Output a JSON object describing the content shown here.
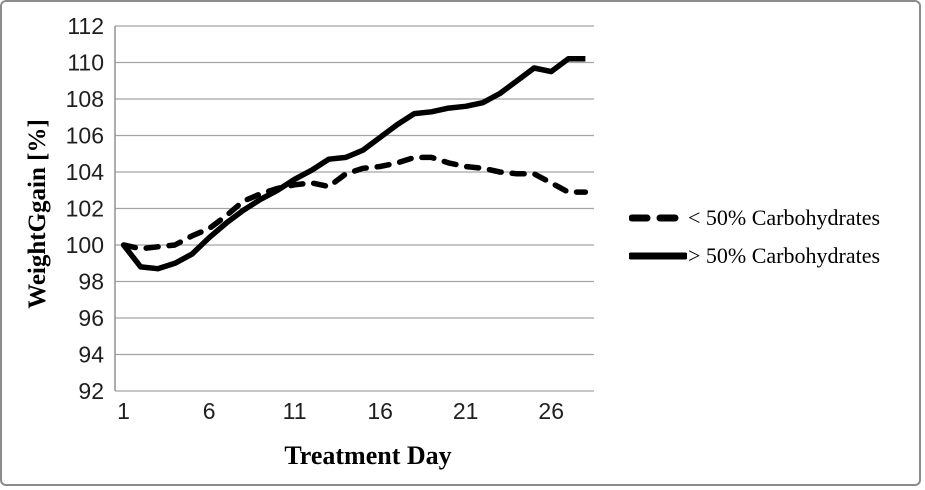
{
  "figure": {
    "background": "#ffffff",
    "border_color": "#8c8c8c"
  },
  "chart_data": {
    "type": "line",
    "title": "",
    "xlabel": "Treatment Day",
    "ylabel": "WeightGgain [%]",
    "x": [
      1,
      2,
      3,
      4,
      5,
      6,
      7,
      8,
      9,
      10,
      11,
      12,
      13,
      14,
      15,
      16,
      17,
      18,
      19,
      20,
      21,
      22,
      23,
      24,
      25,
      26,
      27,
      28
    ],
    "x_tick_labels": [
      "1",
      "6",
      "11",
      "16",
      "21",
      "26"
    ],
    "x_tick_values": [
      1,
      6,
      11,
      16,
      21,
      26
    ],
    "ylim": [
      92,
      112
    ],
    "y_tick_step": 2,
    "y_tick_labels": [
      "92",
      "94",
      "96",
      "98",
      "100",
      "102",
      "104",
      "106",
      "108",
      "110",
      "112"
    ],
    "grid": "horizontal",
    "legend_position": "right",
    "gridline_color": "#a3a3a3",
    "axis_color": "#8c8c8c",
    "line_color": "#000000",
    "series": [
      {
        "name": "< 50% Carbohydrates",
        "style": "dashed",
        "values": [
          100.0,
          99.8,
          99.9,
          100.0,
          100.5,
          100.9,
          101.6,
          102.4,
          102.8,
          103.1,
          103.3,
          103.4,
          103.2,
          103.9,
          104.2,
          104.3,
          104.5,
          104.8,
          104.8,
          104.5,
          104.3,
          104.2,
          104.0,
          103.9,
          103.9,
          103.4,
          102.9,
          102.9
        ]
      },
      {
        "name": "> 50% Carbohydrates",
        "style": "solid",
        "values": [
          100.0,
          98.8,
          98.7,
          99.0,
          99.5,
          100.4,
          101.2,
          101.9,
          102.5,
          103.0,
          103.6,
          104.1,
          104.7,
          104.8,
          105.2,
          105.9,
          106.6,
          107.2,
          107.3,
          107.5,
          107.6,
          107.8,
          108.3,
          109.0,
          109.7,
          109.5,
          110.2,
          110.2
        ]
      }
    ]
  }
}
